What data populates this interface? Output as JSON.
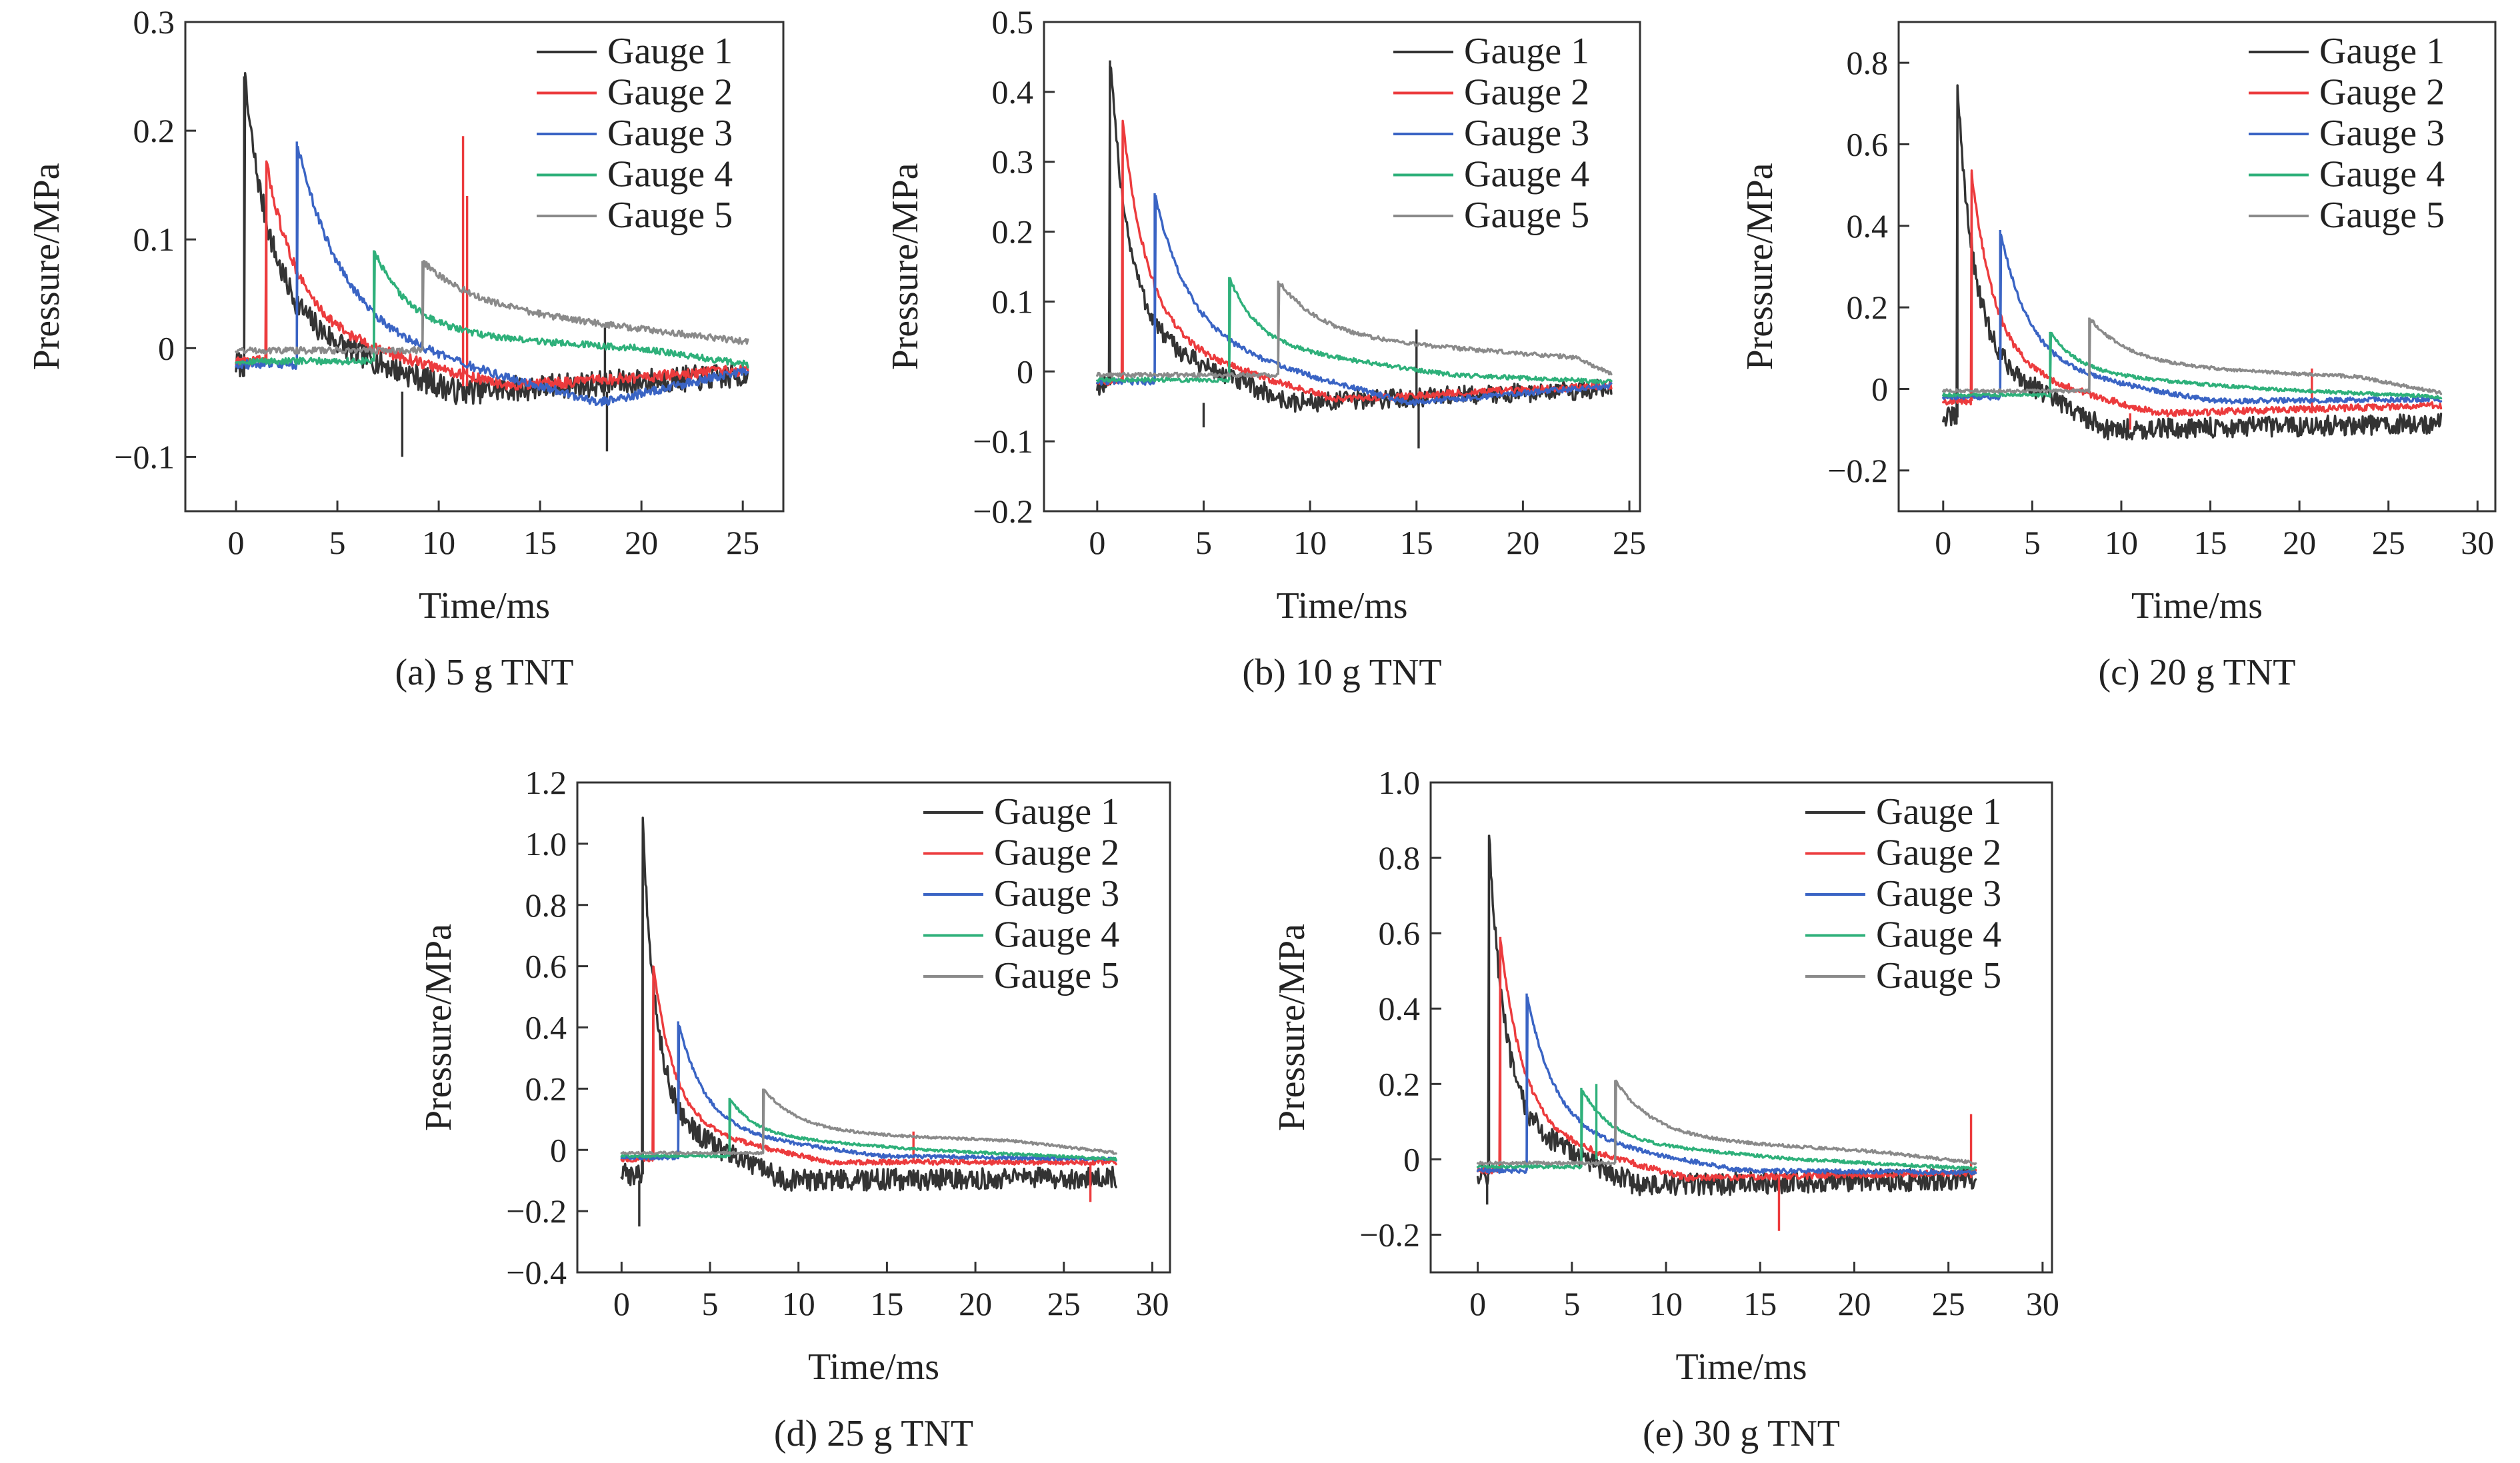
{
  "colors": {
    "Gauge 1": "#333333",
    "Gauge 2": "#ec3b3d",
    "Gauge 3": "#3a64c4",
    "Gauge 4": "#2eb07a",
    "Gauge 5": "#8a8a8a"
  },
  "chart_data": [
    {
      "id": "a",
      "type": "line",
      "caption": "(a) 5 g TNT",
      "xlabel": "Time/ms",
      "ylabel": "Pressure/MPa",
      "xlim": [
        -2.5,
        27
      ],
      "ylim": [
        -0.15,
        0.3
      ],
      "xticks": [
        0,
        5,
        10,
        15,
        20,
        25
      ],
      "yticks": [
        -0.1,
        0,
        0.1,
        0.2,
        0.3
      ],
      "ytick_labels": [
        "−0.1",
        "0",
        "0.1",
        "0.2",
        "0.3"
      ],
      "legend": {
        "position": "top-right"
      },
      "series": [
        {
          "name": "Gauge 1",
          "arrival": 0.4,
          "peak": 0.25,
          "decay": 1.3,
          "base": 0.03,
          "settle": -0.04,
          "end": -0.025,
          "pre": -0.015,
          "noise": 0.012,
          "tail_end": 25.3,
          "spikes": [
            [
              8.2,
              -0.1
            ],
            [
              18.2,
              0.02
            ],
            [
              18.3,
              -0.095
            ]
          ]
        },
        {
          "name": "Gauge 2",
          "arrival": 1.5,
          "peak": 0.17,
          "decay": 1.6,
          "base": 0.02,
          "settle": -0.035,
          "end": -0.02,
          "pre": -0.012,
          "noise": 0.005,
          "tail_end": 25.3,
          "spikes": [
            [
              11.2,
              0.195
            ],
            [
              11.4,
              0.14
            ]
          ]
        },
        {
          "name": "Gauge 3",
          "arrival": 3.0,
          "peak": 0.19,
          "decay": 2.2,
          "base": 0.02,
          "settle": -0.05,
          "end": -0.02,
          "pre": -0.015,
          "noise": 0.004,
          "tail_end": 25.3,
          "spikes": []
        },
        {
          "name": "Gauge 4",
          "arrival": 6.8,
          "peak": 0.09,
          "decay": 1.8,
          "base": 0.015,
          "settle": 0.0,
          "end": -0.015,
          "pre": -0.012,
          "noise": 0.003,
          "tail_end": 25.3,
          "spikes": []
        },
        {
          "name": "Gauge 5",
          "arrival": 9.2,
          "peak": 0.08,
          "decay": 2.5,
          "base": 0.04,
          "settle": 0.005,
          "end": -0.005,
          "pre": -0.002,
          "noise": 0.003,
          "tail_end": 25.3,
          "spikes": []
        }
      ]
    },
    {
      "id": "b",
      "type": "line",
      "caption": "(b) 10 g TNT",
      "xlabel": "Time/ms",
      "ylabel": "Pressure/MPa",
      "xlim": [
        -2.5,
        25.5
      ],
      "ylim": [
        -0.2,
        0.5
      ],
      "xticks": [
        0,
        5,
        10,
        15,
        20,
        25
      ],
      "yticks": [
        -0.2,
        -0.1,
        0,
        0.1,
        0.2,
        0.3,
        0.4,
        0.5
      ],
      "ytick_labels": [
        "−0.2",
        "−0.1",
        "0",
        "0.1",
        "0.2",
        "0.3",
        "0.4",
        "0.5"
      ],
      "legend": {
        "position": "top-right"
      },
      "series": [
        {
          "name": "Gauge 1",
          "arrival": 0.6,
          "peak": 0.445,
          "decay": 0.9,
          "base": 0.06,
          "settle": -0.045,
          "end": -0.025,
          "pre": -0.02,
          "noise": 0.014,
          "tail_end": 24.2,
          "spikes": [
            [
              5.0,
              -0.08
            ],
            [
              15.0,
              0.06
            ],
            [
              15.1,
              -0.11
            ]
          ]
        },
        {
          "name": "Gauge 2",
          "arrival": 1.2,
          "peak": 0.355,
          "decay": 1.2,
          "base": 0.05,
          "settle": -0.04,
          "end": -0.02,
          "pre": -0.015,
          "noise": 0.005,
          "tail_end": 24.2,
          "spikes": []
        },
        {
          "name": "Gauge 3",
          "arrival": 2.7,
          "peak": 0.255,
          "decay": 1.6,
          "base": 0.05,
          "settle": -0.045,
          "end": -0.02,
          "pre": -0.015,
          "noise": 0.004,
          "tail_end": 24.2,
          "spikes": []
        },
        {
          "name": "Gauge 4",
          "arrival": 6.2,
          "peak": 0.135,
          "decay": 1.3,
          "base": 0.04,
          "settle": -0.005,
          "end": -0.015,
          "pre": -0.012,
          "noise": 0.003,
          "tail_end": 24.2,
          "spikes": []
        },
        {
          "name": "Gauge 5",
          "arrival": 8.5,
          "peak": 0.13,
          "decay": 2.0,
          "base": 0.05,
          "settle": 0.02,
          "end": -0.005,
          "pre": -0.005,
          "noise": 0.003,
          "tail_end": 24.2,
          "spikes": []
        }
      ]
    },
    {
      "id": "c",
      "type": "line",
      "caption": "(c) 20 g TNT",
      "xlabel": "Time/ms",
      "ylabel": "Pressure/MPa",
      "xlim": [
        -2.5,
        31
      ],
      "ylim": [
        -0.3,
        0.9
      ],
      "xticks": [
        0,
        5,
        10,
        15,
        20,
        25,
        30
      ],
      "yticks": [
        -0.2,
        0,
        0.2,
        0.4,
        0.6,
        0.8
      ],
      "ytick_labels": [
        "−0.2",
        "0",
        "0.2",
        "0.4",
        "0.6",
        "0.8"
      ],
      "legend": {
        "position": "top-right"
      },
      "series": [
        {
          "name": "Gauge 1",
          "arrival": 0.8,
          "peak": 0.745,
          "decay": 0.9,
          "base": 0.1,
          "settle": -0.1,
          "end": -0.085,
          "pre": -0.07,
          "noise": 0.025,
          "tail_end": 28.0,
          "spikes": []
        },
        {
          "name": "Gauge 2",
          "arrival": 1.6,
          "peak": 0.53,
          "decay": 1.3,
          "base": 0.06,
          "settle": -0.06,
          "end": -0.04,
          "pre": -0.03,
          "noise": 0.008,
          "tail_end": 28.0,
          "spikes": [
            [
              10.5,
              -0.1
            ],
            [
              20.7,
              0.05
            ]
          ]
        },
        {
          "name": "Gauge 3",
          "arrival": 3.2,
          "peak": 0.39,
          "decay": 1.6,
          "base": 0.06,
          "settle": -0.03,
          "end": -0.025,
          "pre": -0.02,
          "noise": 0.006,
          "tail_end": 28.0,
          "spikes": []
        },
        {
          "name": "Gauge 4",
          "arrival": 6.0,
          "peak": 0.14,
          "decay": 1.6,
          "base": 0.04,
          "settle": 0.0,
          "end": -0.02,
          "pre": -0.015,
          "noise": 0.004,
          "tail_end": 28.0,
          "spikes": []
        },
        {
          "name": "Gauge 5",
          "arrival": 8.2,
          "peak": 0.175,
          "decay": 2.2,
          "base": 0.06,
          "settle": 0.03,
          "end": -0.01,
          "pre": -0.005,
          "noise": 0.004,
          "tail_end": 28.0,
          "spikes": []
        }
      ]
    },
    {
      "id": "d",
      "type": "line",
      "caption": "(d) 25 g TNT",
      "xlabel": "Time/ms",
      "ylabel": "Pressure/MPa",
      "xlim": [
        -2.5,
        31
      ],
      "ylim": [
        -0.4,
        1.2
      ],
      "xticks": [
        0,
        5,
        10,
        15,
        20,
        25,
        30
      ],
      "yticks": [
        -0.4,
        -0.2,
        0,
        0.2,
        0.4,
        0.6,
        0.8,
        1.0,
        1.2
      ],
      "ytick_labels": [
        "−0.4",
        "−0.2",
        "0",
        "0.2",
        "0.4",
        "0.6",
        "0.8",
        "1.0",
        "1.2"
      ],
      "legend": {
        "position": "top-right"
      },
      "series": [
        {
          "name": "Gauge 1",
          "arrival": 1.2,
          "peak": 1.05,
          "decay": 0.8,
          "base": 0.12,
          "settle": -0.1,
          "end": -0.09,
          "pre": -0.08,
          "noise": 0.035,
          "tail_end": 28.0,
          "spikes": [
            [
              1.0,
              -0.25
            ]
          ]
        },
        {
          "name": "Gauge 2",
          "arrival": 1.8,
          "peak": 0.6,
          "decay": 1.2,
          "base": 0.08,
          "settle": -0.04,
          "end": -0.04,
          "pre": -0.03,
          "noise": 0.008,
          "tail_end": 28.0,
          "spikes": [
            [
              16.5,
              0.06
            ],
            [
              26.5,
              -0.17
            ]
          ]
        },
        {
          "name": "Gauge 3",
          "arrival": 3.2,
          "peak": 0.42,
          "decay": 1.5,
          "base": 0.07,
          "settle": -0.02,
          "end": -0.03,
          "pre": -0.025,
          "noise": 0.006,
          "tail_end": 28.0,
          "spikes": []
        },
        {
          "name": "Gauge 4",
          "arrival": 6.1,
          "peak": 0.17,
          "decay": 1.4,
          "base": 0.05,
          "settle": 0.0,
          "end": -0.03,
          "pre": -0.02,
          "noise": 0.004,
          "tail_end": 28.0,
          "spikes": []
        },
        {
          "name": "Gauge 5",
          "arrival": 8.0,
          "peak": 0.2,
          "decay": 2.0,
          "base": 0.06,
          "settle": 0.03,
          "end": -0.01,
          "pre": -0.01,
          "noise": 0.004,
          "tail_end": 28.0,
          "spikes": []
        }
      ]
    },
    {
      "id": "e",
      "type": "line",
      "caption": "(e) 30 g TNT",
      "xlabel": "Time/ms",
      "ylabel": "Pressure/MPa",
      "xlim": [
        -2.5,
        30.5
      ],
      "ylim": [
        -0.3,
        1.0
      ],
      "xticks": [
        0,
        5,
        10,
        15,
        20,
        25,
        30
      ],
      "yticks": [
        -0.2,
        0,
        0.2,
        0.4,
        0.6,
        0.8,
        1.0
      ],
      "ytick_labels": [
        "−0.2",
        "0",
        "0.2",
        "0.4",
        "0.6",
        "0.8",
        "1.0"
      ],
      "legend": {
        "position": "top-right"
      },
      "series": [
        {
          "name": "Gauge 1",
          "arrival": 0.6,
          "peak": 0.86,
          "decay": 0.8,
          "base": 0.12,
          "settle": -0.07,
          "end": -0.05,
          "pre": -0.04,
          "noise": 0.03,
          "tail_end": 26.5,
          "spikes": [
            [
              0.5,
              -0.12
            ]
          ]
        },
        {
          "name": "Gauge 2",
          "arrival": 1.2,
          "peak": 0.59,
          "decay": 1.2,
          "base": 0.08,
          "settle": -0.05,
          "end": -0.035,
          "pre": -0.03,
          "noise": 0.008,
          "tail_end": 26.5,
          "spikes": [
            [
              16.0,
              -0.19
            ],
            [
              26.2,
              0.12
            ]
          ]
        },
        {
          "name": "Gauge 3",
          "arrival": 2.6,
          "peak": 0.44,
          "decay": 1.5,
          "base": 0.07,
          "settle": -0.03,
          "end": -0.035,
          "pre": -0.03,
          "noise": 0.006,
          "tail_end": 26.5,
          "spikes": []
        },
        {
          "name": "Gauge 4",
          "arrival": 5.5,
          "peak": 0.19,
          "decay": 1.5,
          "base": 0.05,
          "settle": 0.0,
          "end": -0.025,
          "pre": -0.02,
          "noise": 0.004,
          "tail_end": 26.5,
          "spikes": [
            [
              6.3,
              0.2
            ]
          ]
        },
        {
          "name": "Gauge 5",
          "arrival": 7.3,
          "peak": 0.21,
          "decay": 2.0,
          "base": 0.06,
          "settle": 0.02,
          "end": -0.01,
          "pre": -0.01,
          "noise": 0.004,
          "tail_end": 26.5,
          "spikes": []
        }
      ]
    }
  ]
}
